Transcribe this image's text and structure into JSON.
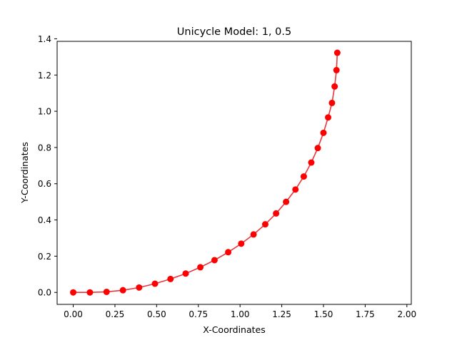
{
  "chart_data": {
    "type": "line",
    "title": "Unicycle Model: 1, 0.5",
    "xlabel": "X-Coordinates",
    "ylabel": "Y-Coordinates",
    "xlim": [
      -0.0965,
      2.0265
    ],
    "ylim": [
      -0.066,
      1.386
    ],
    "xticks": [
      0.0,
      0.25,
      0.5,
      0.75,
      1.0,
      1.25,
      1.5,
      1.75,
      2.0
    ],
    "xtick_labels": [
      "0.00",
      "0.25",
      "0.50",
      "0.75",
      "1.00",
      "1.25",
      "1.50",
      "1.75",
      "2.00"
    ],
    "yticks": [
      0.0,
      0.2,
      0.4,
      0.6,
      0.8,
      1.0,
      1.2,
      1.4
    ],
    "ytick_labels": [
      "0.0",
      "0.2",
      "0.4",
      "0.6",
      "0.8",
      "1.0",
      "1.2",
      "1.4"
    ],
    "grid": false,
    "series": [
      {
        "color": "#ff0000",
        "line_color": "#e8383b",
        "marker": "circle",
        "x": [
          0.0,
          0.1,
          0.2,
          0.298,
          0.395,
          0.49,
          0.583,
          0.674,
          0.762,
          0.847,
          0.929,
          1.007,
          1.081,
          1.151,
          1.216,
          1.276,
          1.332,
          1.382,
          1.427,
          1.466,
          1.5,
          1.528,
          1.551,
          1.567,
          1.578,
          1.583
        ],
        "y": [
          0.0,
          0.0,
          0.003,
          0.012,
          0.027,
          0.048,
          0.074,
          0.104,
          0.139,
          0.178,
          0.222,
          0.269,
          0.32,
          0.376,
          0.436,
          0.5,
          0.568,
          0.64,
          0.717,
          0.797,
          0.881,
          0.966,
          1.046,
          1.137,
          1.227,
          1.323
        ]
      }
    ]
  }
}
